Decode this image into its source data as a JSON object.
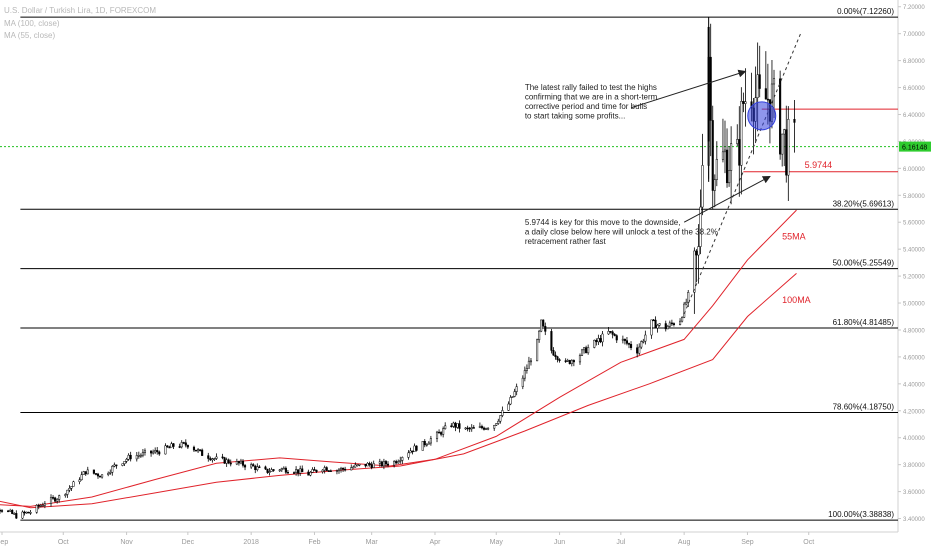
{
  "header": {
    "symbol_line": "U.S. Dollar / Turkish Lira, 1D, FOREXCOM",
    "ma1_line": "MA (100, close)",
    "ma2_line": "MA (55, close)"
  },
  "colors": {
    "background": "#ffffff",
    "candle_up": "#ffffff",
    "candle_down": "#000000",
    "candle_outline": "#000000",
    "ma_line": "#e0232b",
    "fib_line": "#000000",
    "resistance_line": "#e0232b",
    "current_price_line": "#22c022",
    "current_price_label_bg": "#2ecc2e",
    "highlight_circle": "#3340dd",
    "annotation_text": "#222222",
    "axis_text": "#9a9a9a"
  },
  "chart_data": {
    "type": "candlestick",
    "y_axis": {
      "min": 3.3,
      "max": 7.25,
      "ticks": [
        3.4,
        3.6,
        3.8,
        4.0,
        4.2,
        4.4,
        4.6,
        4.8,
        5.0,
        5.2,
        5.4,
        5.6,
        5.8,
        6.0,
        6.2,
        6.4,
        6.6,
        6.8,
        7.0,
        7.2
      ],
      "tick_labels": [
        "3.40000",
        "3.60000",
        "3.80000",
        "4.00000",
        "4.20000",
        "4.40000",
        "4.60000",
        "4.80000",
        "5.00000",
        "5.20000",
        "5.40000",
        "5.60000",
        "5.80000",
        "6.00000",
        "6.20000",
        "6.40000",
        "6.60000",
        "6.80000",
        "7.00000",
        "7.20000"
      ]
    },
    "x_axis": {
      "start": "2017-09-01",
      "end": "2018-10-31",
      "month_labels": [
        {
          "label": "Sep",
          "date": "2017-09-01"
        },
        {
          "label": "Oct",
          "date": "2017-10-01"
        },
        {
          "label": "Nov",
          "date": "2017-11-01"
        },
        {
          "label": "Dec",
          "date": "2017-12-01"
        },
        {
          "label": "2018",
          "date": "2018-01-01"
        },
        {
          "label": "Feb",
          "date": "2018-02-01"
        },
        {
          "label": "Mar",
          "date": "2018-03-01"
        },
        {
          "label": "Apr",
          "date": "2018-04-01"
        },
        {
          "label": "May",
          "date": "2018-05-01"
        },
        {
          "label": "Jun",
          "date": "2018-06-01"
        },
        {
          "label": "Jul",
          "date": "2018-07-01"
        },
        {
          "label": "Aug",
          "date": "2018-08-01"
        },
        {
          "label": "Sep",
          "date": "2018-09-01"
        },
        {
          "label": "Oct",
          "date": "2018-10-01"
        }
      ]
    },
    "price_path": [
      {
        "date": "2017-08-21",
        "value": 3.53
      },
      {
        "date": "2017-09-01",
        "value": 3.47
      },
      {
        "date": "2017-09-08",
        "value": 3.42
      },
      {
        "date": "2017-09-15",
        "value": 3.45
      },
      {
        "date": "2017-09-22",
        "value": 3.52
      },
      {
        "date": "2017-09-29",
        "value": 3.56
      },
      {
        "date": "2017-10-05",
        "value": 3.64
      },
      {
        "date": "2017-10-12",
        "value": 3.75
      },
      {
        "date": "2017-10-20",
        "value": 3.72
      },
      {
        "date": "2017-10-27",
        "value": 3.8
      },
      {
        "date": "2017-11-03",
        "value": 3.86
      },
      {
        "date": "2017-11-10",
        "value": 3.88
      },
      {
        "date": "2017-11-17",
        "value": 3.9
      },
      {
        "date": "2017-11-24",
        "value": 3.94
      },
      {
        "date": "2017-12-01",
        "value": 3.95
      },
      {
        "date": "2017-12-08",
        "value": 3.88
      },
      {
        "date": "2017-12-15",
        "value": 3.84
      },
      {
        "date": "2017-12-22",
        "value": 3.82
      },
      {
        "date": "2018-01-01",
        "value": 3.79
      },
      {
        "date": "2018-01-08",
        "value": 3.75
      },
      {
        "date": "2018-01-15",
        "value": 3.77
      },
      {
        "date": "2018-01-22",
        "value": 3.76
      },
      {
        "date": "2018-01-29",
        "value": 3.73
      },
      {
        "date": "2018-02-05",
        "value": 3.78
      },
      {
        "date": "2018-02-12",
        "value": 3.76
      },
      {
        "date": "2018-02-19",
        "value": 3.78
      },
      {
        "date": "2018-02-26",
        "value": 3.8
      },
      {
        "date": "2018-03-05",
        "value": 3.8
      },
      {
        "date": "2018-03-12",
        "value": 3.82
      },
      {
        "date": "2018-03-19",
        "value": 3.9
      },
      {
        "date": "2018-03-26",
        "value": 3.95
      },
      {
        "date": "2018-04-02",
        "value": 4.02
      },
      {
        "date": "2018-04-09",
        "value": 4.1
      },
      {
        "date": "2018-04-16",
        "value": 4.06
      },
      {
        "date": "2018-04-23",
        "value": 4.07
      },
      {
        "date": "2018-04-30",
        "value": 4.1
      },
      {
        "date": "2018-05-07",
        "value": 4.25
      },
      {
        "date": "2018-05-14",
        "value": 4.45
      },
      {
        "date": "2018-05-21",
        "value": 4.7
      },
      {
        "date": "2018-05-23",
        "value": 4.85
      },
      {
        "date": "2018-05-28",
        "value": 4.65
      },
      {
        "date": "2018-06-04",
        "value": 4.55
      },
      {
        "date": "2018-06-11",
        "value": 4.62
      },
      {
        "date": "2018-06-18",
        "value": 4.7
      },
      {
        "date": "2018-06-25",
        "value": 4.78
      },
      {
        "date": "2018-07-02",
        "value": 4.72
      },
      {
        "date": "2018-07-09",
        "value": 4.65
      },
      {
        "date": "2018-07-16",
        "value": 4.85
      },
      {
        "date": "2018-07-23",
        "value": 4.82
      },
      {
        "date": "2018-07-30",
        "value": 4.88
      },
      {
        "date": "2018-08-03",
        "value": 5.05
      },
      {
        "date": "2018-08-08",
        "value": 5.35
      },
      {
        "date": "2018-08-10",
        "value": 6.2
      },
      {
        "date": "2018-08-13",
        "value": 6.9
      },
      {
        "date": "2018-08-14",
        "value": 6.35
      },
      {
        "date": "2018-08-15",
        "value": 6.05
      },
      {
        "date": "2018-08-17",
        "value": 6.0
      },
      {
        "date": "2018-08-22",
        "value": 6.1
      },
      {
        "date": "2018-08-27",
        "value": 6.05
      },
      {
        "date": "2018-08-30",
        "value": 6.5
      },
      {
        "date": "2018-09-03",
        "value": 6.62
      },
      {
        "date": "2018-09-07",
        "value": 6.45
      },
      {
        "date": "2018-09-12",
        "value": 6.55
      },
      {
        "date": "2018-09-17",
        "value": 6.3
      },
      {
        "date": "2018-09-20",
        "value": 6.15
      },
      {
        "date": "2018-09-24",
        "value": 6.16
      }
    ],
    "ma55": [
      {
        "date": "2017-08-21",
        "value": 3.51
      },
      {
        "date": "2017-09-15",
        "value": 3.49
      },
      {
        "date": "2017-10-15",
        "value": 3.56
      },
      {
        "date": "2017-11-15",
        "value": 3.69
      },
      {
        "date": "2017-12-15",
        "value": 3.81
      },
      {
        "date": "2018-01-15",
        "value": 3.85
      },
      {
        "date": "2018-02-10",
        "value": 3.82
      },
      {
        "date": "2018-03-10",
        "value": 3.79
      },
      {
        "date": "2018-04-01",
        "value": 3.84
      },
      {
        "date": "2018-05-01",
        "value": 4.01
      },
      {
        "date": "2018-06-01",
        "value": 4.3
      },
      {
        "date": "2018-07-01",
        "value": 4.56
      },
      {
        "date": "2018-08-01",
        "value": 4.73
      },
      {
        "date": "2018-08-15",
        "value": 4.98
      },
      {
        "date": "2018-09-01",
        "value": 5.32
      },
      {
        "date": "2018-09-25",
        "value": 5.69
      }
    ],
    "ma100": [
      {
        "date": "2017-08-21",
        "value": 3.56
      },
      {
        "date": "2017-09-15",
        "value": 3.48
      },
      {
        "date": "2017-10-15",
        "value": 3.51
      },
      {
        "date": "2017-11-15",
        "value": 3.59
      },
      {
        "date": "2017-12-15",
        "value": 3.67
      },
      {
        "date": "2018-01-15",
        "value": 3.72
      },
      {
        "date": "2018-02-15",
        "value": 3.76
      },
      {
        "date": "2018-03-15",
        "value": 3.79
      },
      {
        "date": "2018-04-15",
        "value": 3.88
      },
      {
        "date": "2018-05-15",
        "value": 4.05
      },
      {
        "date": "2018-06-15",
        "value": 4.24
      },
      {
        "date": "2018-07-15",
        "value": 4.4
      },
      {
        "date": "2018-08-15",
        "value": 4.58
      },
      {
        "date": "2018-09-01",
        "value": 4.9
      },
      {
        "date": "2018-09-25",
        "value": 5.22
      }
    ],
    "fib_levels": [
      {
        "label": "0.00%(7.12260)",
        "value": 7.1226
      },
      {
        "label": "38.20%(5.69613)",
        "value": 5.69613
      },
      {
        "label": "50.00%(5.25549)",
        "value": 5.25549
      },
      {
        "label": "61.80%(4.81485)",
        "value": 4.81485
      },
      {
        "label": "78.60%(4.18750)",
        "value": 4.1875
      },
      {
        "label": "100.00%(3.38838)",
        "value": 3.38838
      }
    ],
    "fib_start_date": "2017-09-10",
    "resistance_level": {
      "value": 6.44,
      "start_date": "2018-09-08"
    },
    "support_level": {
      "label": "5.9744",
      "value": 5.9744,
      "start_date": "2018-08-30"
    },
    "current_price": {
      "label": "6.16148",
      "value": 6.16148
    },
    "trendline": {
      "start": {
        "date": "2018-08-01",
        "value": 4.92
      },
      "end": {
        "date": "2018-09-27",
        "value": 7.0
      }
    },
    "highlight": {
      "date": "2018-09-08",
      "value": 6.39
    },
    "ma_labels": [
      {
        "label": "55MA",
        "date": "2018-09-18",
        "value": 5.47
      },
      {
        "label": "100MA",
        "date": "2018-09-18",
        "value": 5.0
      }
    ],
    "annotations": [
      {
        "lines": [
          "The latest rally failed to test the highs",
          "confirming that we are in a short-term",
          "corrective period and time for bulls",
          "to start taking some profits..."
        ],
        "date": "2018-05-15",
        "value": 6.58,
        "arrow_from": {
          "date": "2018-07-06",
          "value": 6.45
        },
        "arrow_to": {
          "date": "2018-08-31",
          "value": 6.72
        }
      },
      {
        "lines": [
          "5.9744 is key for this move to the downside,",
          "a daily close below here will unlock a test of the 38.2%",
          "retracement rather fast"
        ],
        "date": "2018-05-15",
        "value": 5.58,
        "arrow_from": {
          "date": "2018-08-01",
          "value": 5.6
        },
        "arrow_to": {
          "date": "2018-09-12",
          "value": 5.94
        }
      }
    ]
  }
}
